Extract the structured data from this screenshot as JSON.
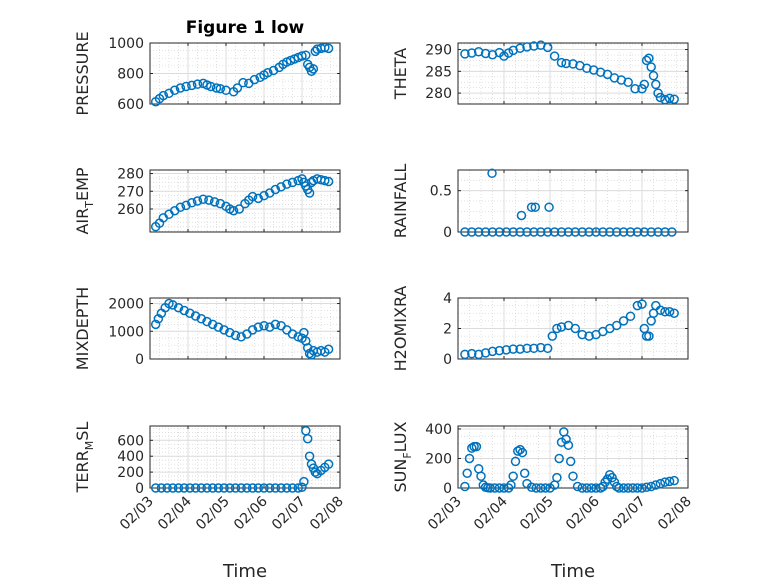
{
  "chart_data": [
    {
      "type": "scatter",
      "title": "Figure 1 low",
      "xlabel": "",
      "ylabel": "PRESSURE",
      "xlim": [
        "02/03",
        "02/08"
      ],
      "ylim": [
        600,
        1000
      ],
      "yticks": [
        600,
        800,
        1000
      ],
      "xticks": [
        "02/03",
        "02/04",
        "02/05",
        "02/06",
        "02/07",
        "02/08"
      ],
      "x": [
        0.15,
        0.25,
        0.35,
        0.5,
        0.65,
        0.8,
        0.95,
        1.1,
        1.25,
        1.4,
        1.5,
        1.6,
        1.75,
        1.85,
        2.0,
        2.2,
        2.3,
        2.45,
        2.6,
        2.75,
        2.9,
        3.0,
        3.1,
        3.25,
        3.4,
        3.5,
        3.6,
        3.7,
        3.8,
        3.9,
        4.0,
        4.1,
        4.15,
        4.2,
        4.25,
        4.3,
        4.35,
        4.4,
        4.5,
        4.6,
        4.7
      ],
      "y": [
        615,
        635,
        655,
        670,
        690,
        705,
        715,
        722,
        730,
        735,
        725,
        715,
        705,
        700,
        690,
        680,
        705,
        740,
        735,
        760,
        775,
        790,
        805,
        820,
        840,
        860,
        875,
        885,
        895,
        905,
        915,
        920,
        860,
        840,
        815,
        830,
        945,
        960,
        965,
        970,
        965
      ]
    },
    {
      "type": "scatter",
      "title": "",
      "xlabel": "",
      "ylabel": "THETA",
      "xlim": [
        "02/03",
        "02/08"
      ],
      "ylim": [
        277.5,
        291.5
      ],
      "yticks": [
        280,
        285,
        290
      ],
      "xticks": [
        "02/03",
        "02/04",
        "02/05",
        "02/06",
        "02/07",
        "02/08"
      ],
      "x": [
        0.15,
        0.3,
        0.45,
        0.6,
        0.75,
        0.9,
        1.0,
        1.1,
        1.2,
        1.35,
        1.5,
        1.65,
        1.8,
        1.95,
        2.1,
        2.25,
        2.35,
        2.5,
        2.65,
        2.8,
        2.95,
        3.1,
        3.25,
        3.4,
        3.55,
        3.7,
        3.85,
        4.0,
        4.05,
        4.1,
        4.15,
        4.2,
        4.25,
        4.3,
        4.35,
        4.4,
        4.5,
        4.6,
        4.7
      ],
      "y": [
        289,
        289.2,
        289.5,
        289.1,
        288.8,
        289.3,
        288.5,
        289.2,
        289.8,
        290.3,
        290.6,
        290.8,
        291,
        290.5,
        288.5,
        287,
        286.8,
        286.7,
        286.3,
        285.7,
        285.3,
        284.8,
        284.3,
        283.5,
        283,
        282.5,
        281,
        281,
        282,
        287.5,
        288,
        286,
        284,
        282,
        280,
        279,
        278.5,
        278.8,
        278.6
      ]
    },
    {
      "type": "scatter",
      "title": "",
      "xlabel": "",
      "ylabel": "AIR_TEMP",
      "xlim": [
        "02/03",
        "02/08"
      ],
      "ylim": [
        247,
        282
      ],
      "yticks": [
        260,
        270,
        280
      ],
      "xticks": [
        "02/03",
        "02/04",
        "02/05",
        "02/06",
        "02/07",
        "02/08"
      ],
      "x": [
        0.15,
        0.25,
        0.35,
        0.5,
        0.65,
        0.8,
        0.95,
        1.1,
        1.25,
        1.4,
        1.55,
        1.7,
        1.85,
        2.0,
        2.1,
        2.2,
        2.35,
        2.5,
        2.6,
        2.7,
        2.85,
        3.0,
        3.15,
        3.3,
        3.45,
        3.6,
        3.75,
        3.9,
        4.0,
        4.05,
        4.1,
        4.15,
        4.2,
        4.25,
        4.3,
        4.4,
        4.5,
        4.6,
        4.7
      ],
      "y": [
        250,
        252,
        255,
        257,
        259,
        261,
        262,
        263.5,
        264.5,
        265.5,
        265,
        264,
        263,
        261.5,
        260,
        259,
        260,
        263,
        265,
        267,
        266,
        267.5,
        269,
        271,
        272.5,
        274,
        275,
        276,
        277,
        275,
        273,
        271,
        269,
        275,
        276,
        277,
        276.5,
        276,
        275.5
      ]
    },
    {
      "type": "scatter",
      "title": "",
      "xlabel": "",
      "ylabel": "RAINFALL",
      "xlim": [
        "02/03",
        "02/08"
      ],
      "ylim": [
        0,
        0.75
      ],
      "yticks": [
        0,
        0.5
      ],
      "xticks": [
        "02/03",
        "02/04",
        "02/05",
        "02/06",
        "02/07",
        "02/08"
      ],
      "x": [
        0.15,
        0.3,
        0.45,
        0.6,
        0.75,
        0.9,
        1.05,
        1.2,
        1.35,
        1.5,
        1.65,
        1.8,
        1.95,
        2.1,
        2.25,
        2.4,
        2.55,
        2.7,
        2.85,
        3.0,
        3.15,
        3.3,
        3.45,
        3.6,
        3.75,
        3.9,
        4.05,
        4.2,
        4.35,
        4.5,
        4.65,
        0.74,
        1.38,
        1.6,
        1.68,
        1.98
      ],
      "y": [
        0,
        0,
        0,
        0,
        0,
        0,
        0,
        0,
        0,
        0,
        0,
        0,
        0,
        0,
        0,
        0,
        0,
        0,
        0,
        0,
        0,
        0,
        0,
        0,
        0,
        0,
        0,
        0,
        0,
        0,
        0,
        0.71,
        0.2,
        0.3,
        0.3,
        0.3
      ]
    },
    {
      "type": "scatter",
      "title": "",
      "xlabel": "",
      "ylabel": "MIXDEPTH",
      "xlim": [
        "02/03",
        "02/08"
      ],
      "ylim": [
        0,
        2200
      ],
      "yticks": [
        0,
        1000,
        2000
      ],
      "xticks": [
        "02/03",
        "02/04",
        "02/05",
        "02/06",
        "02/07",
        "02/08"
      ],
      "x": [
        0.15,
        0.22,
        0.3,
        0.4,
        0.5,
        0.6,
        0.75,
        0.9,
        1.05,
        1.2,
        1.35,
        1.5,
        1.65,
        1.8,
        1.95,
        2.1,
        2.25,
        2.4,
        2.55,
        2.7,
        2.85,
        3.0,
        3.15,
        3.3,
        3.45,
        3.6,
        3.75,
        3.9,
        4.0,
        4.05,
        4.1,
        4.15,
        4.2,
        4.25,
        4.3,
        4.4,
        4.5,
        4.6,
        4.7
      ],
      "y": [
        1250,
        1450,
        1650,
        1850,
        2000,
        1950,
        1850,
        1750,
        1650,
        1550,
        1450,
        1350,
        1250,
        1150,
        1050,
        950,
        850,
        800,
        900,
        1050,
        1150,
        1200,
        1150,
        1250,
        1200,
        1050,
        900,
        800,
        750,
        950,
        650,
        400,
        200,
        150,
        300,
        250,
        300,
        250,
        350
      ]
    },
    {
      "type": "scatter",
      "title": "",
      "xlabel": "",
      "ylabel": "H2OMIXRA",
      "xlim": [
        "02/03",
        "02/08"
      ],
      "ylim": [
        0,
        4
      ],
      "yticks": [
        0,
        2,
        4
      ],
      "xticks": [
        "02/03",
        "02/04",
        "02/05",
        "02/06",
        "02/07",
        "02/08"
      ],
      "x": [
        0.15,
        0.3,
        0.45,
        0.6,
        0.75,
        0.9,
        1.05,
        1.2,
        1.35,
        1.5,
        1.65,
        1.8,
        1.95,
        2.05,
        2.15,
        2.25,
        2.4,
        2.55,
        2.7,
        2.85,
        3.0,
        3.15,
        3.3,
        3.45,
        3.6,
        3.75,
        3.9,
        4.0,
        4.05,
        4.1,
        4.15,
        4.2,
        4.25,
        4.3,
        4.4,
        4.5,
        4.6,
        4.7
      ],
      "y": [
        0.3,
        0.35,
        0.3,
        0.4,
        0.5,
        0.55,
        0.6,
        0.65,
        0.65,
        0.7,
        0.7,
        0.75,
        0.7,
        1.5,
        2.0,
        2.1,
        2.2,
        2.0,
        1.6,
        1.5,
        1.6,
        1.8,
        2.0,
        2.2,
        2.5,
        2.8,
        3.5,
        3.6,
        2.0,
        1.5,
        1.5,
        2.5,
        3.0,
        3.5,
        3.2,
        3.1,
        3.1,
        3.0
      ]
    },
    {
      "type": "scatter",
      "title": "",
      "xlabel": "Time",
      "ylabel": "TERR_MSL",
      "xlim": [
        "02/03",
        "02/08"
      ],
      "ylim": [
        0,
        780
      ],
      "yticks": [
        0,
        200,
        400,
        600
      ],
      "xticks": [
        "02/03",
        "02/04",
        "02/05",
        "02/06",
        "02/07",
        "02/08"
      ],
      "x": [
        0.15,
        0.3,
        0.45,
        0.6,
        0.75,
        0.9,
        1.05,
        1.2,
        1.35,
        1.5,
        1.65,
        1.8,
        1.95,
        2.1,
        2.25,
        2.4,
        2.55,
        2.7,
        2.85,
        3.0,
        3.15,
        3.3,
        3.45,
        3.6,
        3.75,
        3.9,
        4.0,
        4.05,
        4.1,
        4.15,
        4.2,
        4.25,
        4.3,
        4.35,
        4.4,
        4.5,
        4.6,
        4.7
      ],
      "y": [
        0,
        0,
        0,
        0,
        0,
        0,
        0,
        0,
        0,
        0,
        0,
        0,
        0,
        0,
        0,
        0,
        0,
        0,
        0,
        0,
        0,
        0,
        0,
        0,
        0,
        0,
        10,
        80,
        720,
        620,
        400,
        300,
        250,
        200,
        180,
        220,
        260,
        300
      ]
    },
    {
      "type": "scatter",
      "title": "",
      "xlabel": "Time",
      "ylabel": "SUN_FLUX",
      "xlim": [
        "02/03",
        "02/08"
      ],
      "ylim": [
        0,
        420
      ],
      "yticks": [
        0,
        200,
        400
      ],
      "xticks": [
        "02/03",
        "02/04",
        "02/05",
        "02/06",
        "02/07",
        "02/08"
      ],
      "x": [
        0.15,
        0.2,
        0.25,
        0.3,
        0.35,
        0.4,
        0.45,
        0.5,
        0.55,
        0.6,
        0.65,
        0.7,
        0.8,
        0.9,
        1.0,
        1.1,
        1.15,
        1.2,
        1.25,
        1.3,
        1.35,
        1.4,
        1.45,
        1.5,
        1.6,
        1.7,
        1.8,
        1.9,
        2.0,
        2.1,
        2.15,
        2.2,
        2.25,
        2.3,
        2.35,
        2.4,
        2.45,
        2.5,
        2.6,
        2.7,
        2.8,
        2.9,
        3.0,
        3.1,
        3.15,
        3.2,
        3.25,
        3.3,
        3.35,
        3.4,
        3.45,
        3.5,
        3.6,
        3.7,
        3.8,
        3.9,
        4.0,
        4.1,
        4.2,
        4.3,
        4.4,
        4.5,
        4.6,
        4.7
      ],
      "y": [
        10,
        100,
        200,
        270,
        280,
        280,
        130,
        80,
        20,
        5,
        2,
        0,
        0,
        0,
        0,
        0,
        20,
        80,
        180,
        250,
        260,
        240,
        100,
        30,
        5,
        0,
        0,
        0,
        0,
        20,
        70,
        200,
        310,
        380,
        330,
        290,
        180,
        80,
        10,
        0,
        0,
        0,
        0,
        0,
        10,
        40,
        60,
        90,
        70,
        40,
        10,
        0,
        0,
        0,
        0,
        0,
        0,
        5,
        10,
        20,
        30,
        40,
        45,
        50
      ]
    }
  ]
}
